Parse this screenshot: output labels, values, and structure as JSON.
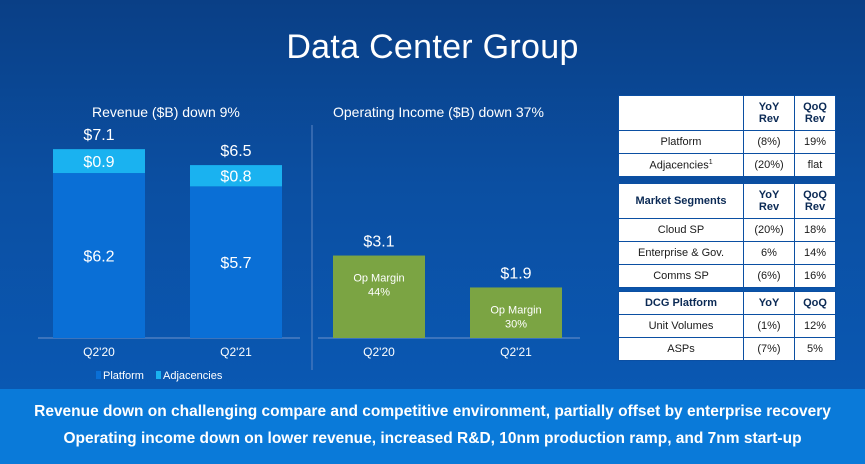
{
  "slide": {
    "title": "Data Center Group"
  },
  "chart_data": [
    {
      "type": "bar",
      "title": "Revenue ($B) down 9%",
      "categories": [
        "Q2'20",
        "Q2'21"
      ],
      "series": [
        {
          "name": "Platform",
          "values": [
            6.2,
            5.7
          ],
          "labels": [
            "$6.2",
            "$5.7"
          ],
          "color": "#0a6fd6"
        },
        {
          "name": "Adjacencies",
          "values": [
            0.9,
            0.8
          ],
          "labels": [
            "$0.9",
            "$0.8"
          ],
          "color": "#1ab2f0"
        }
      ],
      "totals": [
        7.1,
        6.5
      ],
      "total_labels": [
        "$7.1",
        "$6.5"
      ],
      "legend": "bottom-left",
      "ylim": [
        0,
        8
      ]
    },
    {
      "type": "bar",
      "title": "Operating Income ($B) down 37%",
      "categories": [
        "Q2'20",
        "Q2'21"
      ],
      "values": [
        3.1,
        1.9
      ],
      "value_labels": [
        "$3.1",
        "$1.9"
      ],
      "inner_labels": [
        [
          "Op Margin",
          "44%"
        ],
        [
          "Op Margin",
          "30%"
        ]
      ],
      "color": "#7ba443",
      "ylim": [
        0,
        8
      ]
    }
  ],
  "tables": [
    {
      "header": [
        "",
        "YoY Rev",
        "QoQ Rev"
      ],
      "rows": [
        [
          "Platform",
          "(8%)",
          "19%"
        ],
        [
          "Adjacencies",
          "(20%)",
          "flat"
        ]
      ]
    },
    {
      "header": [
        "Market Segments",
        "YoY Rev",
        "QoQ Rev"
      ],
      "rows": [
        [
          "Cloud SP",
          "(20%)",
          "18%"
        ],
        [
          "Enterprise & Gov.",
          "6%",
          "14%"
        ],
        [
          "Comms SP",
          "(6%)",
          "16%"
        ]
      ]
    },
    {
      "header": [
        "DCG Platform",
        "YoY",
        "QoQ"
      ],
      "rows": [
        [
          "Unit Volumes",
          "(1%)",
          "12%"
        ],
        [
          "ASPs",
          "(7%)",
          "5%"
        ]
      ]
    }
  ],
  "footnote_marker": "1",
  "footer": {
    "line1": "Revenue down on challenging compare and competitive environment, partially offset by enterprise recovery",
    "line2": "Operating income down on lower revenue, increased R&D, 10nm production ramp, and 7nm start-up"
  }
}
